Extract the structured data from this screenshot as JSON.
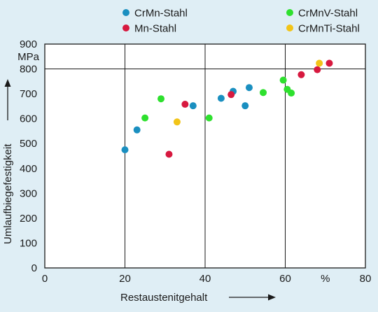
{
  "chart_data": {
    "type": "scatter",
    "title": "",
    "xlabel": "Restaustenitgehalt",
    "ylabel": "Umlaufbiegefestigkeit",
    "x_unit_label": "%",
    "y_unit_label": "MPa",
    "xlim": [
      0,
      80
    ],
    "ylim": [
      0,
      900
    ],
    "x_ticks": [
      0,
      20,
      40,
      60,
      80
    ],
    "y_ticks": [
      0,
      100,
      200,
      300,
      400,
      500,
      600,
      700,
      800,
      900
    ],
    "grid": "vertical lines at 20, 40, 60; horizontal line at 800",
    "legend_position": "top",
    "series": [
      {
        "name": "CrMn-Stahl",
        "color": "#1a8fc0",
        "points": [
          {
            "x": 20,
            "y": 475
          },
          {
            "x": 23,
            "y": 555
          },
          {
            "x": 37,
            "y": 652
          },
          {
            "x": 44,
            "y": 682
          },
          {
            "x": 47,
            "y": 710
          },
          {
            "x": 50,
            "y": 652
          },
          {
            "x": 51,
            "y": 725
          }
        ]
      },
      {
        "name": "Mn-Stahl",
        "color": "#d7193f",
        "points": [
          {
            "x": 31,
            "y": 457
          },
          {
            "x": 35,
            "y": 658
          },
          {
            "x": 46.5,
            "y": 697
          },
          {
            "x": 64,
            "y": 777
          },
          {
            "x": 68,
            "y": 797
          },
          {
            "x": 71,
            "y": 823
          }
        ]
      },
      {
        "name": "CrMnV-Stahl",
        "color": "#2ee02e",
        "points": [
          {
            "x": 25,
            "y": 603
          },
          {
            "x": 29,
            "y": 680
          },
          {
            "x": 41,
            "y": 603
          },
          {
            "x": 54.5,
            "y": 705
          },
          {
            "x": 59.5,
            "y": 755
          },
          {
            "x": 60.5,
            "y": 718
          },
          {
            "x": 61.5,
            "y": 703
          }
        ]
      },
      {
        "name": "CrMnTi-Stahl",
        "color": "#f2c418",
        "points": [
          {
            "x": 33,
            "y": 587
          },
          {
            "x": 68.5,
            "y": 823
          }
        ]
      }
    ]
  },
  "plot_style": {
    "background": "#dfeef5",
    "plot_background": "#ffffff",
    "frame_color": "#1a1a1a",
    "grid_color": "#1a1a1a"
  }
}
